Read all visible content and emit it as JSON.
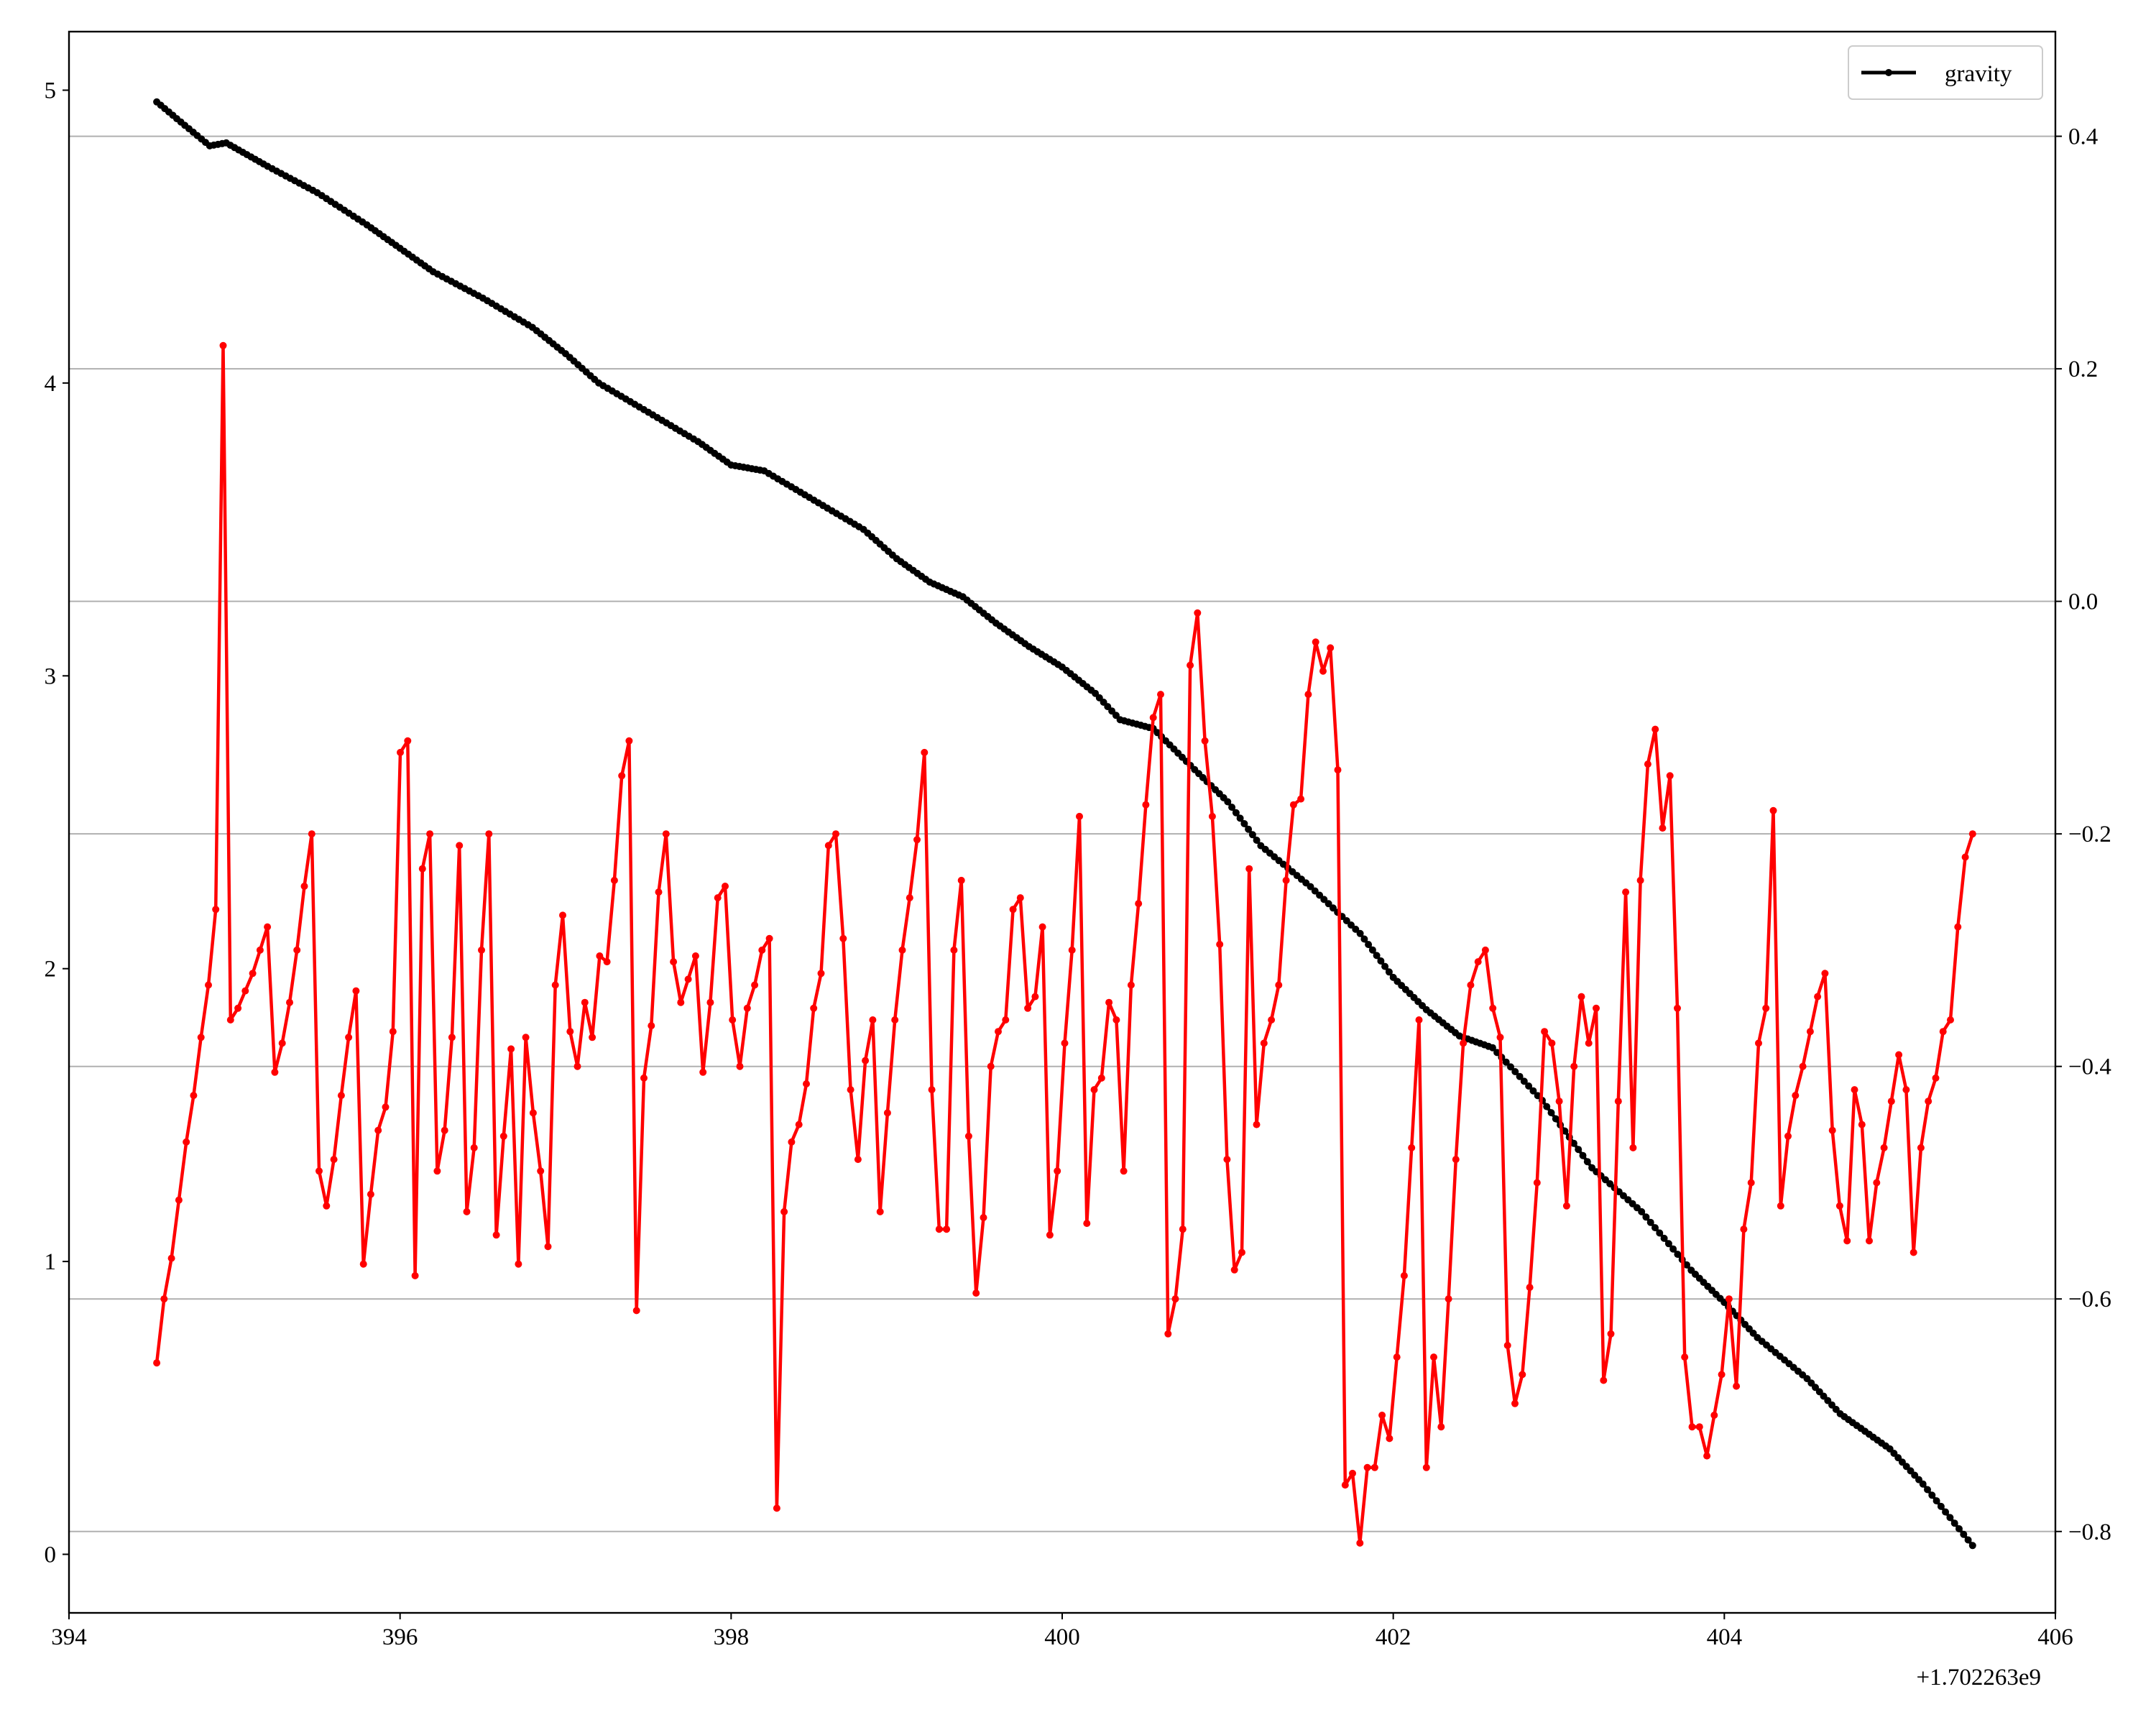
{
  "chart_data": {
    "type": "line",
    "title": "",
    "xlabel": "",
    "ylabel_left": "",
    "ylabel_right": "",
    "x_offset_label": "+1.702263e9",
    "xlim": [
      394.5,
      405.5
    ],
    "xlim_axis": [
      394.0,
      406.0
    ],
    "ylim_left": [
      -0.2,
      5.2
    ],
    "ylim_right": [
      -0.87,
      0.49
    ],
    "x_ticks": [
      394,
      396,
      398,
      400,
      402,
      404,
      406
    ],
    "y_left_ticks": [
      0,
      1,
      2,
      3,
      4,
      5
    ],
    "y_right_ticks": [
      -0.8,
      -0.6,
      -0.4,
      -0.2,
      0.0,
      0.2,
      0.4
    ],
    "y_right_tick_labels": [
      "−0.8",
      "−0.6",
      "−0.4",
      "−0.2",
      "0.0",
      "0.2",
      "0.4"
    ],
    "grid": "horizontal lines on right axis",
    "legend_position": "top-right",
    "series": [
      {
        "name": "gravity",
        "axis": "left",
        "color": "#000000",
        "marker": "dot",
        "x_start": 394.53,
        "x_end": 405.5,
        "points": [
          [
            394.53,
            4.96
          ],
          [
            394.7,
            4.88
          ],
          [
            394.85,
            4.81
          ],
          [
            394.95,
            4.82
          ],
          [
            395.2,
            4.74
          ],
          [
            395.5,
            4.65
          ],
          [
            395.8,
            4.54
          ],
          [
            396.0,
            4.46
          ],
          [
            396.2,
            4.38
          ],
          [
            396.5,
            4.29
          ],
          [
            396.8,
            4.19
          ],
          [
            397.0,
            4.1
          ],
          [
            397.2,
            4.0
          ],
          [
            397.5,
            3.9
          ],
          [
            397.8,
            3.8
          ],
          [
            398.0,
            3.72
          ],
          [
            398.2,
            3.7
          ],
          [
            398.5,
            3.6
          ],
          [
            398.8,
            3.5
          ],
          [
            399.0,
            3.4
          ],
          [
            399.2,
            3.32
          ],
          [
            399.4,
            3.27
          ],
          [
            399.6,
            3.18
          ],
          [
            399.8,
            3.1
          ],
          [
            400.0,
            3.03
          ],
          [
            400.2,
            2.94
          ],
          [
            400.35,
            2.85
          ],
          [
            400.55,
            2.82
          ],
          [
            400.8,
            2.68
          ],
          [
            401.0,
            2.57
          ],
          [
            401.2,
            2.42
          ],
          [
            401.5,
            2.28
          ],
          [
            401.8,
            2.12
          ],
          [
            402.0,
            1.97
          ],
          [
            402.2,
            1.86
          ],
          [
            402.4,
            1.77
          ],
          [
            402.6,
            1.73
          ],
          [
            402.9,
            1.55
          ],
          [
            403.2,
            1.32
          ],
          [
            403.5,
            1.17
          ],
          [
            403.8,
            0.97
          ],
          [
            404.0,
            0.86
          ],
          [
            404.2,
            0.74
          ],
          [
            404.5,
            0.6
          ],
          [
            404.7,
            0.48
          ],
          [
            404.9,
            0.4
          ],
          [
            405.0,
            0.36
          ],
          [
            405.2,
            0.24
          ],
          [
            405.5,
            0.03
          ]
        ]
      },
      {
        "name": "",
        "axis": "right",
        "color": "#ff0000",
        "marker": "dot",
        "x_start": 394.53,
        "x_end": 405.5,
        "values": [
          -0.655,
          -0.6,
          -0.565,
          -0.515,
          -0.465,
          -0.425,
          -0.375,
          -0.33,
          -0.265,
          0.22,
          -0.36,
          -0.35,
          -0.335,
          -0.32,
          -0.3,
          -0.28,
          -0.405,
          -0.38,
          -0.345,
          -0.3,
          -0.245,
          -0.2,
          -0.49,
          -0.52,
          -0.48,
          -0.425,
          -0.375,
          -0.335,
          -0.57,
          -0.51,
          -0.455,
          -0.435,
          -0.37,
          -0.13,
          -0.12,
          -0.58,
          -0.23,
          -0.2,
          -0.49,
          -0.455,
          -0.375,
          -0.21,
          -0.525,
          -0.47,
          -0.3,
          -0.2,
          -0.545,
          -0.46,
          -0.385,
          -0.57,
          -0.375,
          -0.44,
          -0.49,
          -0.555,
          -0.33,
          -0.27,
          -0.37,
          -0.4,
          -0.345,
          -0.375,
          -0.305,
          -0.31,
          -0.24,
          -0.15,
          -0.12,
          -0.61,
          -0.41,
          -0.365,
          -0.25,
          -0.2,
          -0.31,
          -0.345,
          -0.325,
          -0.305,
          -0.405,
          -0.345,
          -0.255,
          -0.245,
          -0.36,
          -0.4,
          -0.35,
          -0.33,
          -0.3,
          -0.29,
          -0.78,
          -0.525,
          -0.465,
          -0.45,
          -0.415,
          -0.35,
          -0.32,
          -0.21,
          -0.2,
          -0.29,
          -0.42,
          -0.48,
          -0.395,
          -0.36,
          -0.525,
          -0.44,
          -0.36,
          -0.3,
          -0.255,
          -0.205,
          -0.13,
          -0.42,
          -0.54,
          -0.54,
          -0.3,
          -0.24,
          -0.46,
          -0.595,
          -0.53,
          -0.4,
          -0.37,
          -0.36,
          -0.265,
          -0.255,
          -0.35,
          -0.34,
          -0.28,
          -0.545,
          -0.49,
          -0.38,
          -0.3,
          -0.185,
          -0.535,
          -0.42,
          -0.41,
          -0.345,
          -0.36,
          -0.49,
          -0.33,
          -0.26,
          -0.175,
          -0.1,
          -0.08,
          -0.63,
          -0.6,
          -0.54,
          -0.055,
          -0.01,
          -0.12,
          -0.185,
          -0.295,
          -0.48,
          -0.575,
          -0.56,
          -0.23,
          -0.45,
          -0.38,
          -0.36,
          -0.33,
          -0.24,
          -0.175,
          -0.17,
          -0.08,
          -0.035,
          -0.06,
          -0.04,
          -0.145,
          -0.76,
          -0.75,
          -0.81,
          -0.745,
          -0.745,
          -0.7,
          -0.72,
          -0.65,
          -0.58,
          -0.47,
          -0.36,
          -0.745,
          -0.65,
          -0.71,
          -0.6,
          -0.48,
          -0.38,
          -0.33,
          -0.31,
          -0.3,
          -0.35,
          -0.375,
          -0.64,
          -0.69,
          -0.665,
          -0.59,
          -0.5,
          -0.37,
          -0.38,
          -0.43,
          -0.52,
          -0.4,
          -0.34,
          -0.38,
          -0.35,
          -0.67,
          -0.63,
          -0.43,
          -0.25,
          -0.47,
          -0.24,
          -0.14,
          -0.11,
          -0.195,
          -0.15,
          -0.35,
          -0.65,
          -0.71,
          -0.71,
          -0.735,
          -0.7,
          -0.665,
          -0.6,
          -0.675,
          -0.54,
          -0.5,
          -0.38,
          -0.35,
          -0.18,
          -0.52,
          -0.46,
          -0.425,
          -0.4,
          -0.37,
          -0.34,
          -0.32,
          -0.455,
          -0.52,
          -0.55,
          -0.42,
          -0.45,
          -0.55,
          -0.5,
          -0.47,
          -0.43,
          -0.39,
          -0.42,
          -0.56,
          -0.47,
          -0.43,
          -0.41,
          -0.37,
          -0.36,
          -0.28,
          -0.22,
          -0.2
        ]
      }
    ]
  },
  "legend": {
    "items": [
      {
        "label": "gravity",
        "color": "#000000"
      }
    ]
  }
}
